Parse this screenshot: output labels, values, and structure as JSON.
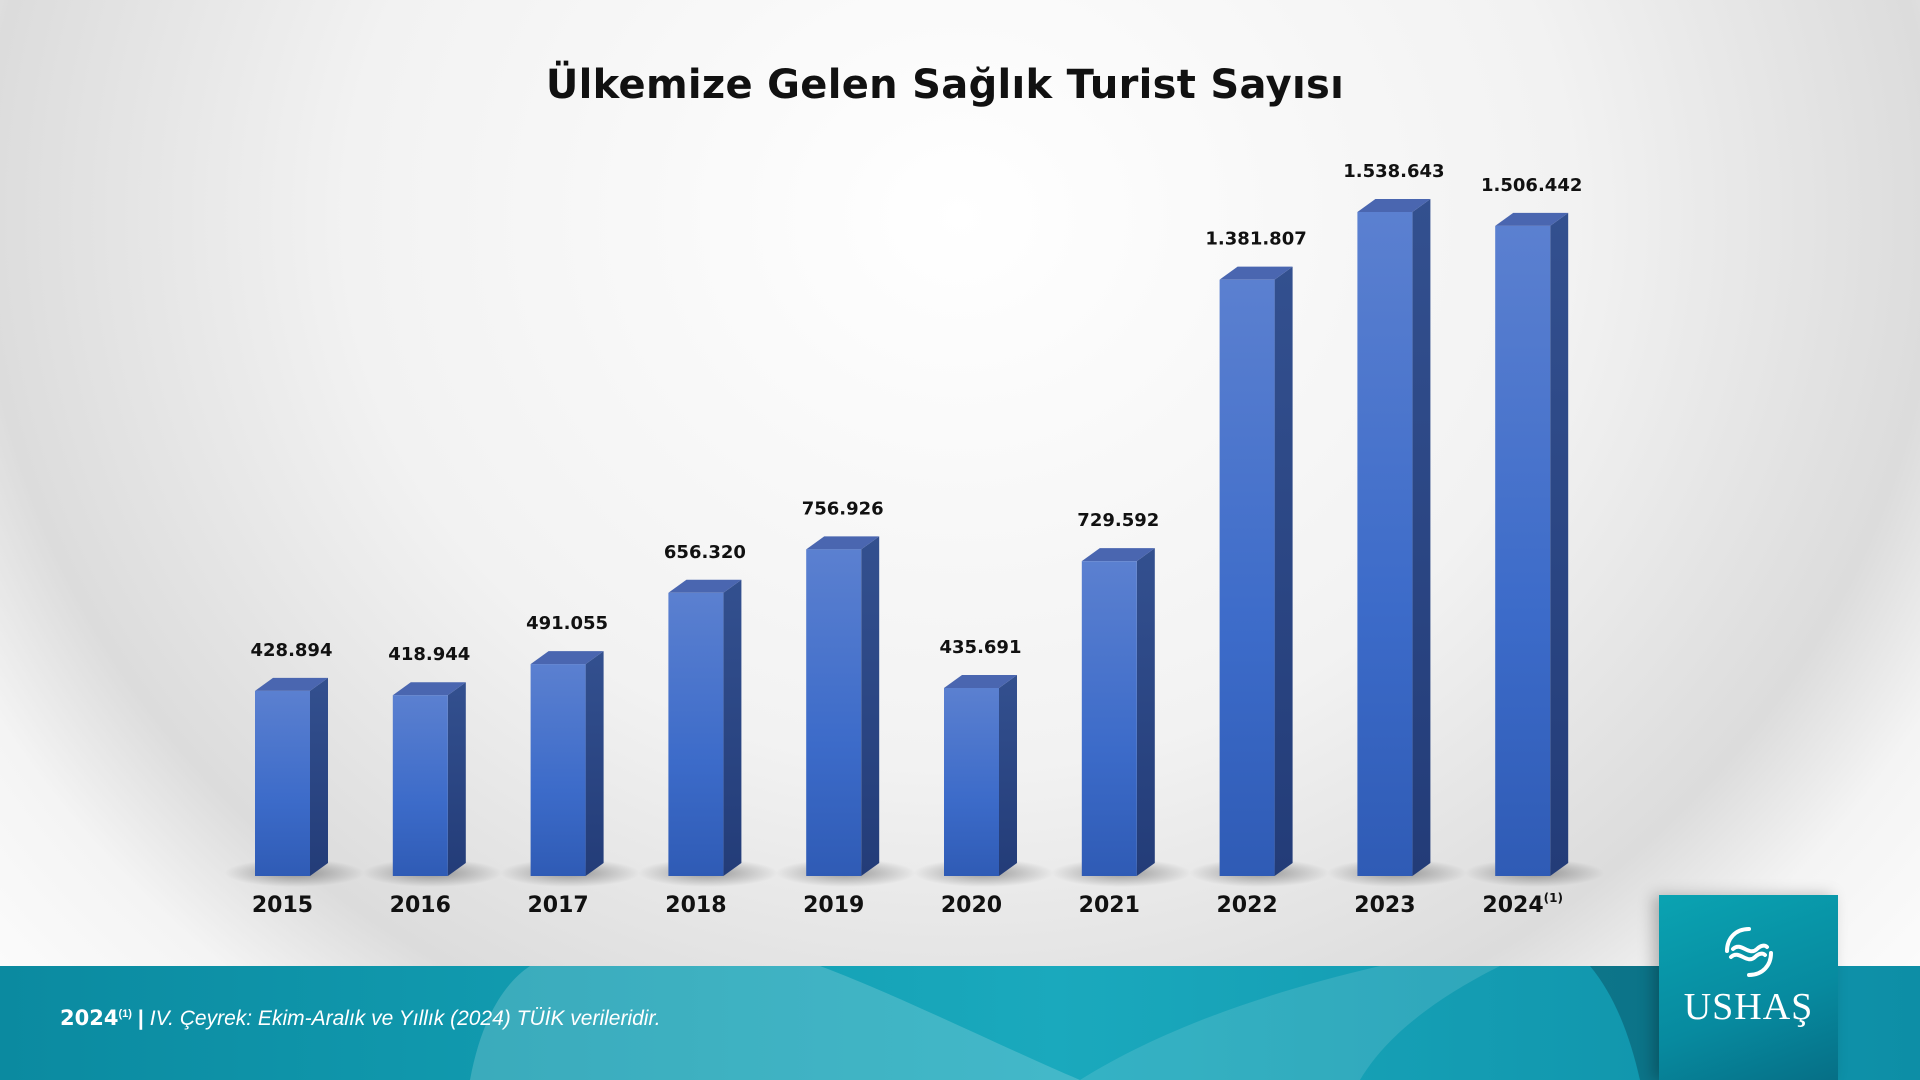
{
  "chart_data": {
    "type": "bar",
    "title": "Ülkemize Gelen Sağlık Turist Sayısı",
    "categories": [
      "2015",
      "2016",
      "2017",
      "2018",
      "2019",
      "2020",
      "2021",
      "2022",
      "2023",
      "2024"
    ],
    "category_superscripts": [
      "",
      "",
      "",
      "",
      "",
      "",
      "",
      "",
      "",
      "(1)"
    ],
    "values": [
      428894,
      418944,
      491055,
      656320,
      756926,
      435691,
      729592,
      1381807,
      1538643,
      1506442
    ],
    "value_labels": [
      "428.894",
      "418.944",
      "491.055",
      "656.320",
      "756.926",
      "435.691",
      "729.592",
      "1.381.807",
      "1.538.643",
      "1.506.442"
    ],
    "ylim": [
      0,
      1538643
    ],
    "xlabel": "",
    "ylabel": "",
    "grid": false,
    "bar_color": "#3f6cc8"
  },
  "footnote": {
    "year": "2024",
    "sup": "(1)",
    "separator": "|",
    "text": "IV. Çeyrek: Ekim-Aralık ve Yıllık (2024) TÜİK verileridir."
  },
  "logo": {
    "text": "USHAŞ"
  }
}
